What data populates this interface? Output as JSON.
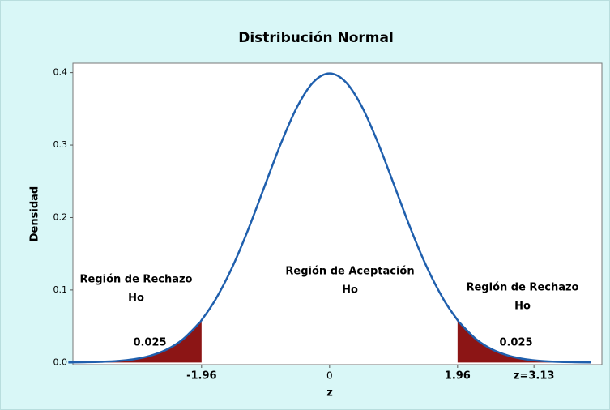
{
  "chart_data": {
    "type": "line",
    "title": "Distribución Normal",
    "x_label": "z",
    "y_label": "Densidad",
    "xlim": [
      -3.93,
      4.17
    ],
    "ylim": [
      -0.003,
      0.413
    ],
    "xticks": [
      -1.96,
      0,
      1.96,
      {
        "value": 3.13,
        "label": "z=3.13"
      }
    ],
    "yticks": [
      {
        "value": 0,
        "label": "0.0"
      },
      0.1,
      0.2,
      0.3,
      0.4
    ],
    "series": [
      {
        "name": "Densidad",
        "color": "#1f5fad",
        "x": [
          -4,
          -3.75,
          -3.5,
          -3.25,
          -3,
          -2.75,
          -2.5,
          -2.25,
          -2,
          -1.96,
          -1.75,
          -1.5,
          -1.25,
          -1,
          -0.75,
          -0.5,
          -0.25,
          0,
          0.25,
          0.5,
          0.75,
          1,
          1.25,
          1.5,
          1.75,
          1.96,
          2,
          2.25,
          2.5,
          2.75,
          3,
          3.25,
          3.5,
          3.75,
          4
        ],
        "values": [
          0.0001,
          0.0004,
          0.0009,
          0.002,
          0.0044,
          0.0091,
          0.0175,
          0.0317,
          0.054,
          0.0584,
          0.0863,
          0.1295,
          0.1826,
          0.242,
          0.3011,
          0.3521,
          0.3867,
          0.3989,
          0.3867,
          0.3521,
          0.3011,
          0.242,
          0.1826,
          0.1295,
          0.0863,
          0.0584,
          0.054,
          0.0317,
          0.0175,
          0.0091,
          0.0044,
          0.002,
          0.0009,
          0.0004,
          0.0001
        ]
      }
    ],
    "shaded": [
      {
        "from": -4,
        "to": -1.96
      },
      {
        "from": 1.96,
        "to": 4
      }
    ],
    "shade_color": "#8c1515",
    "annotations": [
      {
        "lines": [
          "Región de Rechazo",
          "Ho"
        ]
      },
      {
        "lines": [
          "Región de Aceptación",
          "Ho"
        ]
      },
      {
        "lines": [
          "Región de Rechazo",
          "Ho"
        ]
      },
      {
        "lines": [
          "0.025"
        ]
      },
      {
        "lines": [
          "0.025"
        ]
      }
    ]
  }
}
